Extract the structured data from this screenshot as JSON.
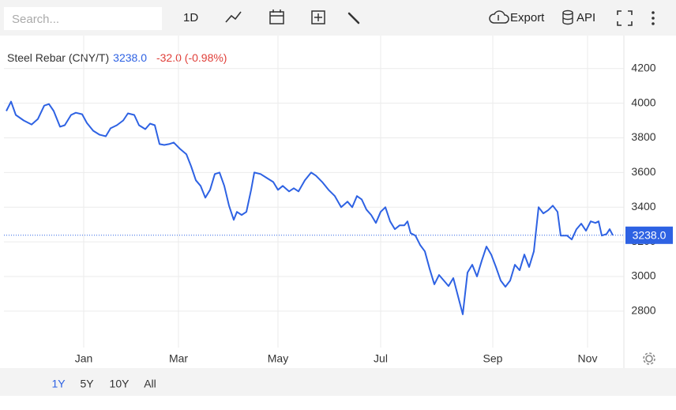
{
  "toolbar": {
    "search": "Search...",
    "interval": "1D",
    "export": "Export",
    "api": "API"
  },
  "ranges": [
    "1Y",
    "5Y",
    "10Y",
    "All"
  ],
  "chart_data": {
    "type": "line",
    "title": "Steel Rebar (CNY/T)",
    "price": "3238.0",
    "change": "-32.0 (-0.98%)",
    "x": [
      0,
      3,
      6,
      11,
      16,
      20,
      24,
      27,
      30,
      34,
      37,
      41,
      44,
      48,
      51,
      55,
      59,
      63,
      66,
      70,
      74,
      77,
      81,
      84,
      88,
      91,
      94,
      97,
      100,
      103,
      106,
      110,
      114,
      117,
      120,
      123,
      126,
      129,
      132,
      135,
      138,
      141,
      144,
      146,
      149,
      152,
      155,
      157,
      161,
      165,
      169,
      172,
      175,
      179,
      182,
      185,
      189,
      193,
      196,
      200,
      204,
      208,
      212,
      216,
      219,
      222,
      225,
      228,
      231,
      234,
      237,
      240,
      243,
      246,
      249,
      252,
      254,
      256,
      259,
      262,
      265,
      268,
      271,
      274,
      277,
      280,
      283,
      286,
      289,
      292,
      295,
      298,
      301,
      304,
      307,
      310,
      313,
      316,
      319,
      322,
      325,
      328,
      331,
      334,
      337,
      340,
      343,
      346,
      349,
      351,
      355,
      358,
      361,
      364,
      367,
      370,
      373,
      375,
      377,
      380,
      382,
      384
    ],
    "series": [
      {
        "name": "Steel Rebar (CNY/T)",
        "color": "#2e62e3",
        "values": [
          3955,
          4009,
          3932,
          3900,
          3877,
          3909,
          3986,
          3995,
          3955,
          3864,
          3873,
          3932,
          3945,
          3936,
          3886,
          3841,
          3818,
          3809,
          3855,
          3873,
          3900,
          3941,
          3932,
          3873,
          3850,
          3882,
          3873,
          3764,
          3759,
          3764,
          3773,
          3736,
          3705,
          3636,
          3555,
          3523,
          3455,
          3500,
          3591,
          3600,
          3523,
          3409,
          3327,
          3373,
          3355,
          3373,
          3500,
          3600,
          3591,
          3568,
          3545,
          3500,
          3523,
          3491,
          3509,
          3491,
          3555,
          3600,
          3582,
          3545,
          3500,
          3464,
          3400,
          3432,
          3400,
          3464,
          3445,
          3386,
          3355,
          3309,
          3373,
          3400,
          3318,
          3273,
          3295,
          3295,
          3318,
          3250,
          3236,
          3182,
          3145,
          3045,
          2955,
          3009,
          2977,
          2945,
          2991,
          2886,
          2782,
          3023,
          3068,
          3000,
          3091,
          3173,
          3127,
          3055,
          2977,
          2941,
          2977,
          3068,
          3036,
          3127,
          3055,
          3145,
          3400,
          3364,
          3382,
          3409,
          3373,
          3236,
          3236,
          3214,
          3273,
          3305,
          3264,
          3318,
          3309,
          3318,
          3236,
          3245,
          3273,
          3238
        ]
      }
    ],
    "xlim": [
      -1.5,
      391
    ],
    "xticks": [
      {
        "value": 49,
        "label": "Jan"
      },
      {
        "value": 109,
        "label": "Mar"
      },
      {
        "value": 172,
        "label": "May"
      },
      {
        "value": 237,
        "label": "Jul"
      },
      {
        "value": 308,
        "label": "Sep"
      },
      {
        "value": 368,
        "label": "Nov"
      }
    ],
    "ylim": [
      2590,
      4390
    ],
    "yticks": [
      2800,
      3000,
      3200,
      3400,
      3600,
      3800,
      4000,
      4200
    ],
    "grid": true
  }
}
